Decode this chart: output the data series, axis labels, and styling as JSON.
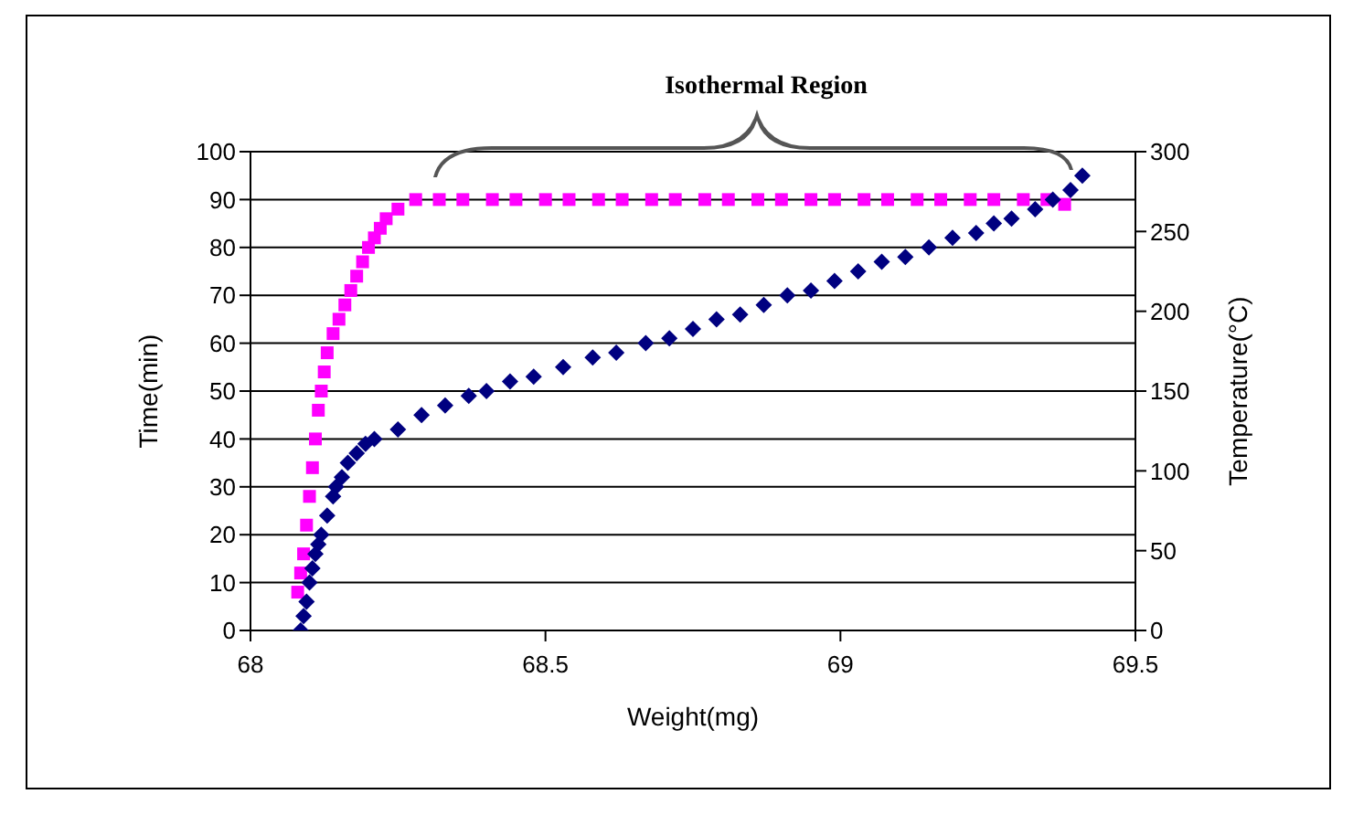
{
  "chart_data": {
    "type": "scatter",
    "xlabel": "Weight(mg)",
    "ylabel": "Time(min)",
    "y2label": "Temperature(°C)",
    "annotations": [
      "Isothermal Region"
    ],
    "xlim": [
      68,
      69.5
    ],
    "xticks": [
      68,
      68.5,
      69,
      69.5
    ],
    "ylim": [
      0,
      100
    ],
    "yticks": [
      0,
      10,
      20,
      30,
      40,
      50,
      60,
      70,
      80,
      90,
      100
    ],
    "y2lim": [
      0,
      300
    ],
    "y2ticks": [
      0,
      50,
      100,
      150,
      200,
      250,
      300
    ],
    "grid": "y",
    "series": [
      {
        "color": "#000080",
        "marker": "diamond",
        "x": [
          68.085,
          68.09,
          68.095,
          68.1,
          68.105,
          68.11,
          68.115,
          68.12,
          68.13,
          68.14,
          68.145,
          68.155,
          68.165,
          68.18,
          68.195,
          68.21,
          68.25,
          68.29,
          68.33,
          68.37,
          68.4,
          68.44,
          68.48,
          68.53,
          68.58,
          68.62,
          68.67,
          68.71,
          68.75,
          68.79,
          68.83,
          68.87,
          68.91,
          68.95,
          68.99,
          69.03,
          69.07,
          69.11,
          69.15,
          69.19,
          69.23,
          69.26,
          69.29,
          69.33,
          69.36,
          69.39,
          69.41
        ],
        "values": [
          0,
          3,
          6,
          10,
          13,
          16,
          18,
          20,
          24,
          28,
          30,
          32,
          35,
          37,
          39,
          40,
          42,
          45,
          47,
          49,
          50,
          52,
          53,
          55,
          57,
          58,
          60,
          61,
          63,
          65,
          66,
          68,
          70,
          71,
          73,
          75,
          77,
          78,
          80,
          82,
          83,
          85,
          86,
          88,
          90,
          92,
          95
        ]
      },
      {
        "color": "#ff00ff",
        "marker": "square",
        "axis": "y2",
        "x": [
          68.08,
          68.085,
          68.09,
          68.095,
          68.1,
          68.105,
          68.11,
          68.115,
          68.12,
          68.125,
          68.13,
          68.14,
          68.15,
          68.16,
          68.17,
          68.18,
          68.19,
          68.2,
          68.21,
          68.22,
          68.23,
          68.25,
          68.28,
          68.32,
          68.36,
          68.41,
          68.45,
          68.5,
          68.54,
          68.59,
          68.63,
          68.68,
          68.72,
          68.77,
          68.81,
          68.86,
          68.9,
          68.95,
          68.99,
          69.04,
          69.08,
          69.13,
          69.17,
          69.22,
          69.26,
          69.31,
          69.35,
          69.38
        ],
        "values": [
          24,
          36,
          48,
          66,
          84,
          102,
          120,
          138,
          150,
          162,
          174,
          186,
          195,
          204,
          213,
          222,
          231,
          240,
          246,
          252,
          258,
          264,
          270,
          270,
          270,
          270,
          270,
          270,
          270,
          270,
          270,
          270,
          270,
          270,
          270,
          270,
          270,
          270,
          270,
          270,
          270,
          270,
          270,
          270,
          270,
          270,
          270,
          267
        ]
      }
    ]
  }
}
